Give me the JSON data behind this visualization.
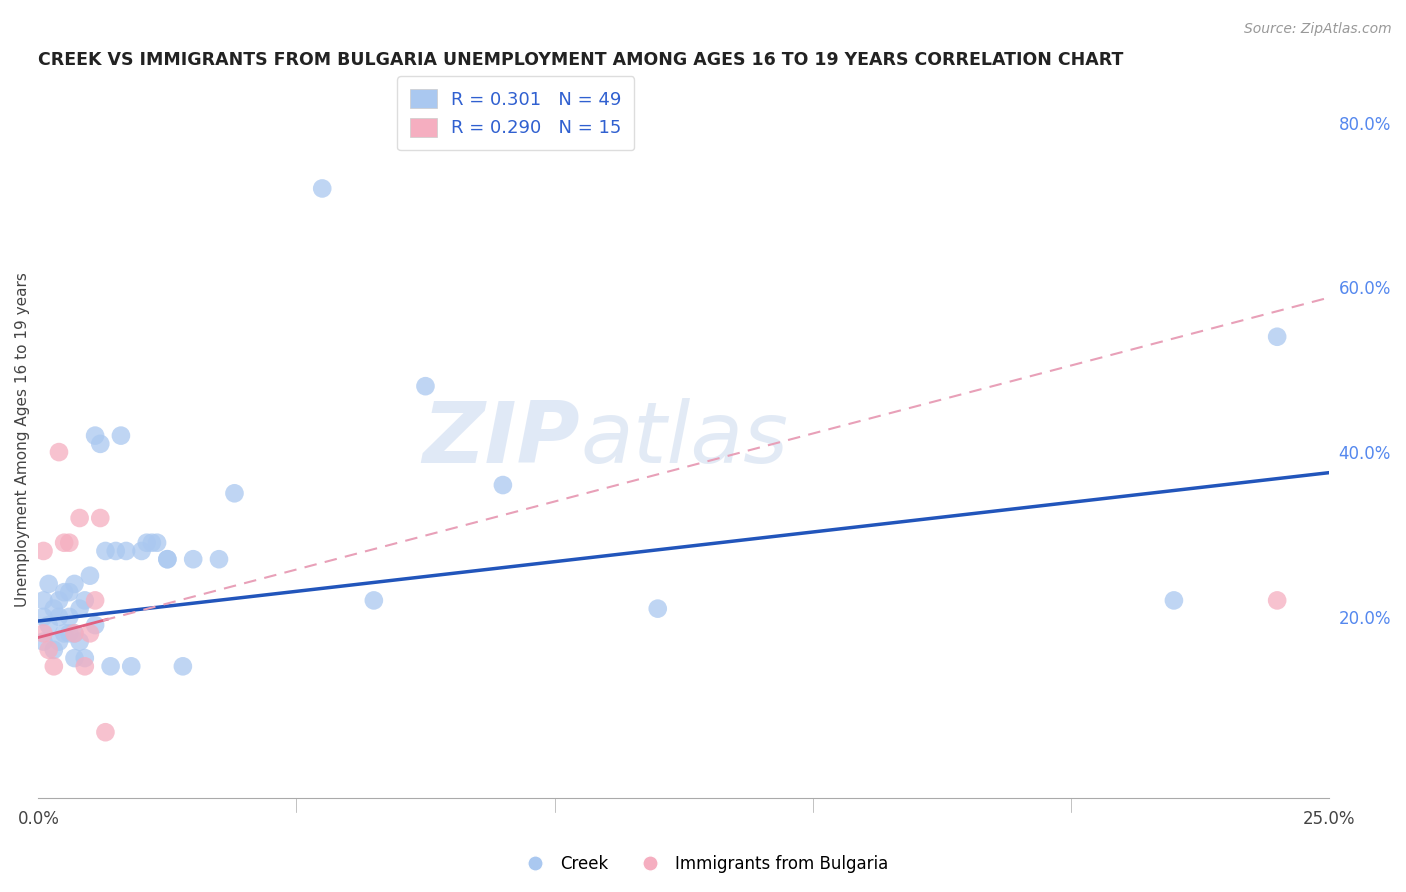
{
  "title": "CREEK VS IMMIGRANTS FROM BULGARIA UNEMPLOYMENT AMONG AGES 16 TO 19 YEARS CORRELATION CHART",
  "source": "Source: ZipAtlas.com",
  "ylabel": "Unemployment Among Ages 16 to 19 years",
  "xlim": [
    0.0,
    0.25
  ],
  "ylim": [
    -0.02,
    0.85
  ],
  "xticks": [
    0.0,
    0.05,
    0.1,
    0.15,
    0.2,
    0.25
  ],
  "yticks_right": [
    0.0,
    0.2,
    0.4,
    0.6,
    0.8
  ],
  "yticklabels_right": [
    "",
    "20.0%",
    "40.0%",
    "60.0%",
    "80.0%"
  ],
  "creek_color": "#aac8f0",
  "bulgaria_color": "#f5aec0",
  "creek_line_color": "#2255bb",
  "bulgaria_solid_color": "#e06080",
  "bulgaria_dash_color": "#e8a0b8",
  "creek_R": 0.301,
  "creek_N": 49,
  "bulgaria_R": 0.29,
  "bulgaria_N": 15,
  "legend_R_color": "#3060d0",
  "creek_x": [
    0.001,
    0.001,
    0.001,
    0.002,
    0.002,
    0.003,
    0.003,
    0.004,
    0.004,
    0.004,
    0.005,
    0.005,
    0.006,
    0.006,
    0.006,
    0.007,
    0.007,
    0.007,
    0.008,
    0.008,
    0.009,
    0.009,
    0.01,
    0.011,
    0.011,
    0.012,
    0.013,
    0.014,
    0.015,
    0.016,
    0.017,
    0.018,
    0.02,
    0.021,
    0.022,
    0.023,
    0.025,
    0.025,
    0.028,
    0.03,
    0.035,
    0.038,
    0.055,
    0.065,
    0.075,
    0.09,
    0.12,
    0.22,
    0.24
  ],
  "creek_y": [
    0.22,
    0.2,
    0.17,
    0.24,
    0.19,
    0.21,
    0.16,
    0.22,
    0.17,
    0.2,
    0.23,
    0.18,
    0.23,
    0.2,
    0.18,
    0.24,
    0.18,
    0.15,
    0.21,
    0.17,
    0.22,
    0.15,
    0.25,
    0.42,
    0.19,
    0.41,
    0.28,
    0.14,
    0.28,
    0.42,
    0.28,
    0.14,
    0.28,
    0.29,
    0.29,
    0.29,
    0.27,
    0.27,
    0.14,
    0.27,
    0.27,
    0.35,
    0.72,
    0.22,
    0.48,
    0.36,
    0.21,
    0.22,
    0.54
  ],
  "bulgaria_x": [
    0.001,
    0.001,
    0.002,
    0.003,
    0.004,
    0.005,
    0.006,
    0.007,
    0.008,
    0.009,
    0.01,
    0.011,
    0.012,
    0.013,
    0.24
  ],
  "bulgaria_y": [
    0.28,
    0.18,
    0.16,
    0.14,
    0.4,
    0.29,
    0.29,
    0.18,
    0.32,
    0.14,
    0.18,
    0.22,
    0.32,
    0.06,
    0.22
  ],
  "watermark_zip": "ZIP",
  "watermark_atlas": "atlas",
  "background_color": "#ffffff",
  "grid_color": "#cccccc",
  "creek_line_intercept": 0.195,
  "creek_line_slope": 0.72,
  "bulgaria_line_intercept": 0.175,
  "bulgaria_line_slope": 1.65
}
